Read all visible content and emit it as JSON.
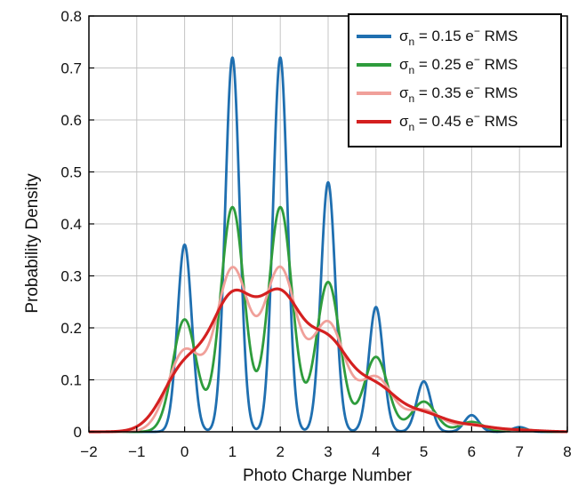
{
  "chart_data": {
    "type": "line",
    "xlabel": "Photo Charge Number",
    "ylabel": "Probability Density",
    "xlim": [
      -2,
      8
    ],
    "ylim": [
      0,
      0.8
    ],
    "xticks": [
      -2,
      -1,
      0,
      1,
      2,
      3,
      4,
      5,
      6,
      7,
      8
    ],
    "yticks": [
      0,
      0.1,
      0.2,
      0.3,
      0.4,
      0.5,
      0.6,
      0.7,
      0.8
    ],
    "xtick_labels": [
      "−2",
      "−1",
      "0",
      "1",
      "2",
      "3",
      "4",
      "5",
      "6",
      "7",
      "8"
    ],
    "ytick_labels": [
      "0",
      "0.1",
      "0.2",
      "0.3",
      "0.4",
      "0.5",
      "0.6",
      "0.7",
      "0.8"
    ],
    "grid": true,
    "legend_position": "top-right",
    "series": [
      {
        "name": "σn = 0.15 e− RMS",
        "legend": {
          "sigma": "σ",
          "sub": "n",
          "value": " = 0.15 e",
          "sup": "−",
          "unit": " RMS"
        },
        "color": "#1f6fb0",
        "sigma": 0.15,
        "peaks": [
          [
            0,
            0.36
          ],
          [
            1,
            0.72
          ],
          [
            2,
            0.72
          ],
          [
            3,
            0.48
          ],
          [
            4,
            0.24
          ],
          [
            5,
            0.097
          ],
          [
            6,
            0.032
          ],
          [
            7,
            0.009
          ]
        ]
      },
      {
        "name": "σn = 0.25 e− RMS",
        "legend": {
          "sigma": "σ",
          "sub": "n",
          "value": " = 0.25 e",
          "sup": "−",
          "unit": " RMS"
        },
        "color": "#2e9c3c",
        "sigma": 0.25,
        "peaks": [
          [
            0,
            0.216
          ],
          [
            1,
            0.432
          ],
          [
            2,
            0.432
          ],
          [
            3,
            0.288
          ],
          [
            4,
            0.144
          ],
          [
            5,
            0.058
          ],
          [
            6,
            0.019
          ],
          [
            7,
            0.005
          ]
        ]
      },
      {
        "name": "σn = 0.35 e− RMS",
        "legend": {
          "sigma": "σ",
          "sub": "n",
          "value": " = 0.35 e",
          "sup": "−",
          "unit": " RMS"
        },
        "color": "#f0a09a",
        "sigma": 0.35,
        "peaks": [
          [
            0,
            0.154
          ],
          [
            1,
            0.309
          ],
          [
            2,
            0.309
          ],
          [
            3,
            0.206
          ],
          [
            4,
            0.103
          ],
          [
            5,
            0.041
          ],
          [
            6,
            0.014
          ],
          [
            7,
            0.004
          ]
        ]
      },
      {
        "name": "σn = 0.45 e− RMS",
        "legend": {
          "sigma": "σ",
          "sub": "n",
          "value": " = 0.45 e",
          "sup": "−",
          "unit": " RMS"
        },
        "color": "#d42020",
        "sigma": 0.45,
        "peaks": [
          [
            0,
            0.12
          ],
          [
            1,
            0.24
          ],
          [
            2,
            0.24
          ],
          [
            3,
            0.16
          ],
          [
            4,
            0.08
          ],
          [
            5,
            0.032
          ],
          [
            6,
            0.011
          ],
          [
            7,
            0.003
          ]
        ]
      }
    ]
  }
}
